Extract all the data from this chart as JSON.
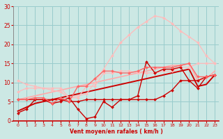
{
  "background_color": "#cce8e4",
  "grid_color": "#99cccc",
  "xlabel": "Vent moyen/en rafales ( km/h )",
  "xlabel_color": "#cc0000",
  "tick_color": "#cc0000",
  "xlim": [
    -0.5,
    23.5
  ],
  "ylim": [
    0,
    30
  ],
  "yticks": [
    0,
    5,
    10,
    15,
    20,
    25,
    30
  ],
  "xticks": [
    0,
    1,
    2,
    3,
    4,
    5,
    6,
    7,
    8,
    9,
    10,
    11,
    12,
    13,
    14,
    15,
    16,
    17,
    18,
    19,
    20,
    21,
    22,
    23
  ],
  "lines": [
    {
      "x": [
        0,
        1,
        2,
        3,
        4,
        5,
        6,
        7,
        8,
        9,
        10,
        11,
        12,
        13,
        14,
        15,
        16,
        17,
        18,
        19,
        20,
        21,
        22,
        23
      ],
      "y": [
        7.5,
        8.5,
        8.5,
        8.5,
        8.5,
        8.5,
        6.0,
        6.0,
        9.0,
        9.0,
        12.5,
        12.5,
        13.0,
        13.0,
        12.5,
        12.5,
        12.5,
        13.0,
        13.0,
        14.0,
        14.0,
        15.0,
        15.0,
        15.0
      ],
      "color": "#ffbbbb",
      "lw": 0.9,
      "marker": "D",
      "ms": 2.0
    },
    {
      "x": [
        0,
        1,
        2,
        3,
        4,
        5,
        6,
        7,
        8,
        9,
        10,
        11,
        12,
        13,
        14,
        15,
        16,
        17,
        18,
        19,
        20,
        21,
        22,
        23
      ],
      "y": [
        10.5,
        9.5,
        9.0,
        8.5,
        8.0,
        7.5,
        6.0,
        6.5,
        7.0,
        10.0,
        13.5,
        17.0,
        20.5,
        22.5,
        24.5,
        26.0,
        27.5,
        27.0,
        25.5,
        23.5,
        22.0,
        20.5,
        17.0,
        15.0
      ],
      "color": "#ffbbbb",
      "lw": 0.9,
      "marker": "D",
      "ms": 2.0
    },
    {
      "x": [
        0,
        1,
        2,
        3,
        4,
        5,
        6,
        7,
        8,
        9,
        10,
        11,
        12,
        13,
        14,
        15,
        16,
        17,
        18,
        19,
        20,
        21,
        22,
        23
      ],
      "y": [
        2.0,
        3.0,
        5.5,
        5.5,
        5.5,
        5.5,
        5.0,
        5.0,
        5.5,
        5.5,
        5.5,
        5.5,
        5.5,
        5.5,
        5.5,
        5.5,
        5.5,
        6.5,
        8.0,
        10.5,
        10.5,
        10.5,
        11.5,
        12.0
      ],
      "color": "#cc0000",
      "lw": 1.0,
      "marker": "D",
      "ms": 2.0
    },
    {
      "x": [
        0,
        1,
        2,
        3,
        4,
        5,
        6,
        7,
        8,
        9,
        10,
        11,
        12,
        13,
        14,
        15,
        16,
        17,
        18,
        19,
        20,
        21,
        22,
        23
      ],
      "y": [
        5.5,
        5.5,
        5.5,
        5.5,
        4.5,
        5.0,
        6.0,
        3.0,
        0.5,
        1.0,
        5.0,
        3.5,
        5.5,
        5.5,
        6.5,
        15.5,
        12.5,
        13.5,
        13.5,
        14.0,
        10.5,
        8.5,
        11.5,
        12.0
      ],
      "color": "#cc0000",
      "lw": 1.0,
      "marker": "D",
      "ms": 2.0
    },
    {
      "x": [
        0,
        1,
        2,
        3,
        4,
        5,
        6,
        7,
        8,
        9,
        10,
        11,
        12,
        13,
        14,
        15,
        16,
        17,
        18,
        19,
        20,
        21,
        22,
        23
      ],
      "y": [
        5.5,
        5.5,
        6.0,
        6.0,
        4.5,
        6.0,
        5.0,
        9.0,
        9.0,
        11.0,
        13.0,
        13.0,
        12.5,
        12.5,
        13.0,
        14.0,
        14.0,
        14.0,
        14.0,
        14.5,
        15.0,
        11.5,
        11.5,
        12.0
      ],
      "color": "#ff6666",
      "lw": 1.0,
      "marker": "D",
      "ms": 2.0
    },
    {
      "x": [
        0,
        1,
        2,
        3,
        4,
        5,
        6,
        7,
        8,
        9,
        10,
        11,
        12,
        13,
        14,
        15,
        16,
        17,
        18,
        19,
        20,
        21,
        22,
        23
      ],
      "y": [
        2.5,
        3.5,
        4.5,
        5.0,
        5.5,
        6.0,
        6.5,
        7.0,
        7.5,
        8.0,
        8.5,
        9.0,
        9.5,
        10.0,
        10.5,
        11.0,
        11.5,
        12.0,
        12.5,
        13.0,
        13.5,
        9.0,
        9.5,
        12.0
      ],
      "color": "#cc0000",
      "lw": 1.4,
      "marker": null,
      "ms": 0
    },
    {
      "x": [
        0,
        1,
        2,
        3,
        4,
        5,
        6,
        7,
        8,
        9,
        10,
        11,
        12,
        13,
        14,
        15,
        16,
        17,
        18,
        19,
        20,
        21,
        22,
        23
      ],
      "y": [
        5.5,
        6.0,
        6.5,
        7.0,
        7.5,
        8.0,
        8.5,
        9.0,
        9.5,
        10.0,
        10.5,
        11.0,
        11.5,
        12.0,
        12.5,
        13.0,
        13.5,
        14.0,
        14.5,
        14.5,
        15.0,
        10.5,
        11.0,
        13.0
      ],
      "color": "#ffaaaa",
      "lw": 1.2,
      "marker": null,
      "ms": 0
    }
  ]
}
